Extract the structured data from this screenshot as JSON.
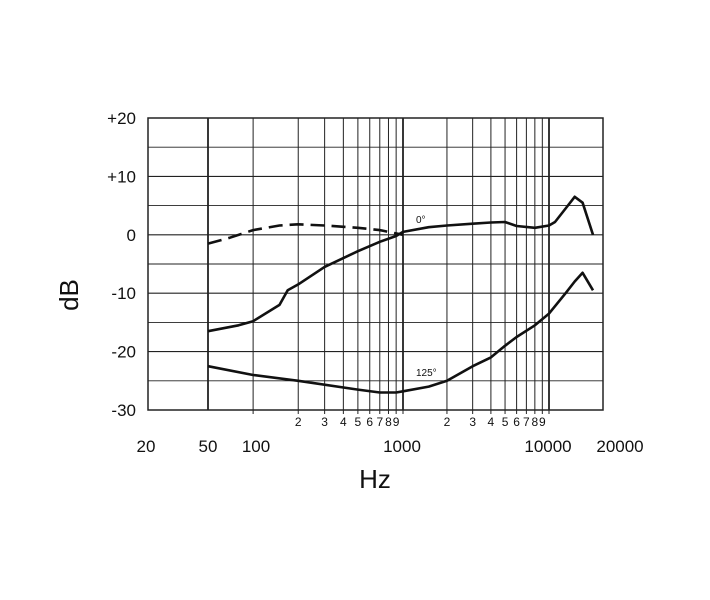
{
  "chart_data": {
    "type": "line",
    "xlabel": "Hz",
    "ylabel": "dB",
    "x_scale": "log",
    "xlim": [
      50,
      20000
    ],
    "ylim": [
      -30,
      20
    ],
    "grid": true,
    "y_ticks": [
      "+20",
      "+10",
      "0",
      "-10",
      "-20",
      "-30"
    ],
    "y_tick_values": [
      20,
      10,
      0,
      -10,
      -20,
      -30
    ],
    "x_major_ticks": [
      "20",
      "50",
      "100",
      "1000",
      "10000",
      "20000"
    ],
    "minor_tick_labels_1": [
      "2",
      "3",
      "4",
      "5",
      "6",
      "7",
      "8",
      "9"
    ],
    "minor_tick_labels_2": [
      "2",
      "3",
      "4",
      "5",
      "6",
      "7",
      "8",
      "9"
    ],
    "series": [
      {
        "name": "0°",
        "style": "solid",
        "x": [
          50,
          80,
          100,
          150,
          170,
          200,
          300,
          500,
          700,
          900,
          1000,
          1500,
          2000,
          3000,
          4000,
          5000,
          6000,
          8000,
          10000,
          11000,
          13000,
          15000,
          17000,
          20000
        ],
        "values": [
          -16.5,
          -15.5,
          -14.8,
          -12,
          -9.5,
          -8.5,
          -5.5,
          -2.8,
          -1.2,
          -0.2,
          0.5,
          1.3,
          1.6,
          1.9,
          2.1,
          2.2,
          1.5,
          1.2,
          1.6,
          2.2,
          4.5,
          6.5,
          5.5,
          0
        ]
      },
      {
        "name": "",
        "style": "dashed",
        "x": [
          50,
          70,
          100,
          150,
          200,
          300,
          500,
          700,
          1000
        ],
        "values": [
          -1.5,
          -0.5,
          0.8,
          1.6,
          1.8,
          1.6,
          1.2,
          0.8,
          0
        ]
      },
      {
        "name": "125°",
        "style": "solid",
        "x": [
          50,
          100,
          200,
          500,
          700,
          900,
          1000,
          1500,
          2000,
          3000,
          4000,
          5000,
          6000,
          8000,
          10000,
          13000,
          15000,
          17000,
          20000
        ],
        "values": [
          -22.5,
          -24,
          -25,
          -26.5,
          -27,
          -27,
          -26.8,
          -26,
          -25,
          -22.5,
          -21,
          -19,
          -17.5,
          -15.5,
          -13.5,
          -10,
          -8,
          -6.5,
          -9.5
        ]
      }
    ],
    "annotations": [
      "0°",
      "125°"
    ]
  }
}
